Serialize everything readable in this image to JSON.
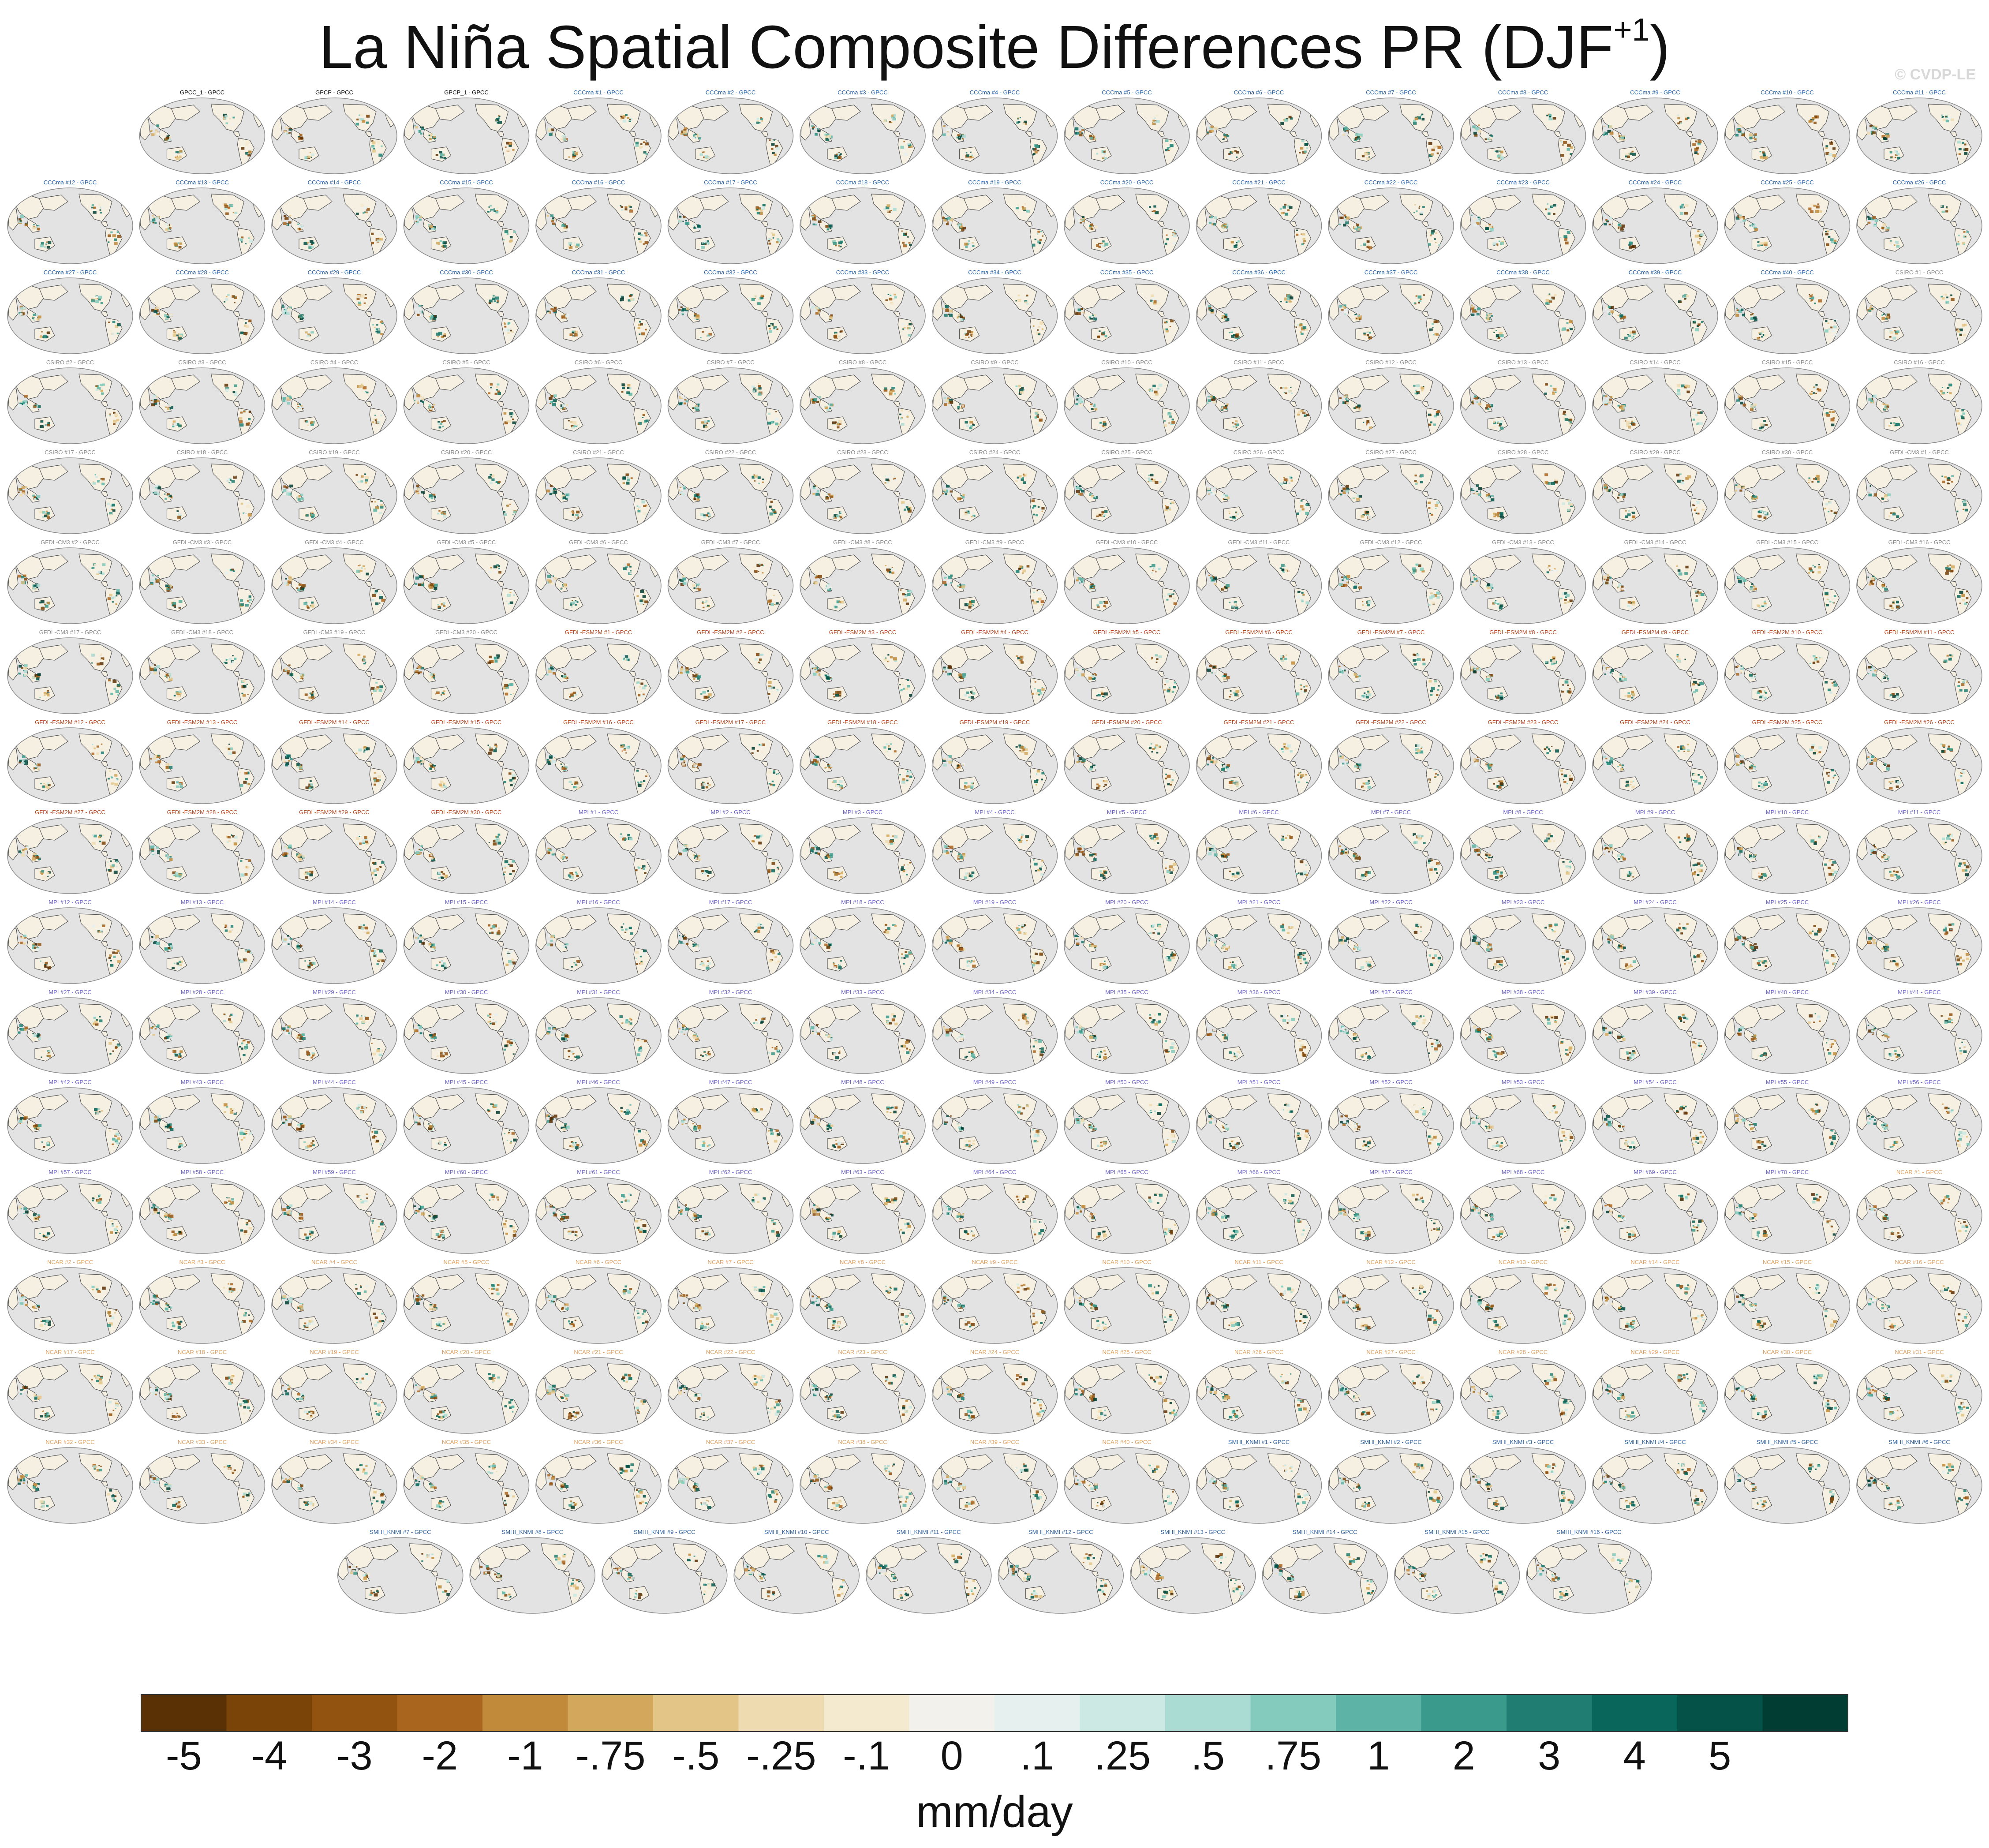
{
  "title": {
    "main": "La Niña Spatial Composite Differences PR (DJF",
    "superscript": "+1",
    "close": ")"
  },
  "copyright": "© CVDP-LE",
  "chart_data": {
    "type": "heatmap",
    "description_kind": "grid of global precipitation composite-difference maps (Robinson projection)",
    "panel_labels": [
      "GPCC_1 - GPCC",
      "GPCP - GPCC",
      "GPCP_1 - GPCC",
      "CCCma #1 - GPCC",
      "CCCma #2 - GPCC",
      "CCCma #3 - GPCC",
      "CCCma #4 - GPCC",
      "CCCma #5 - GPCC",
      "CCCma #6 - GPCC",
      "CCCma #7 - GPCC",
      "CCCma #8 - GPCC",
      "CCCma #9 - GPCC",
      "CCCma #10 - GPCC",
      "CCCma #11 - GPCC",
      "CCCma #12 - GPCC",
      "CCCma #13 - GPCC",
      "CCCma #14 - GPCC",
      "CCCma #15 - GPCC",
      "CCCma #16 - GPCC",
      "CCCma #17 - GPCC",
      "CCCma #18 - GPCC",
      "CCCma #19 - GPCC",
      "CCCma #20 - GPCC",
      "CCCma #21 - GPCC",
      "CCCma #22 - GPCC",
      "CCCma #23 - GPCC",
      "CCCma #24 - GPCC",
      "CCCma #25 - GPCC",
      "CCCma #26 - GPCC",
      "CCCma #27 - GPCC",
      "CCCma #28 - GPCC",
      "CCCma #29 - GPCC",
      "CCCma #30 - GPCC",
      "CCCma #31 - GPCC",
      "CCCma #32 - GPCC",
      "CCCma #33 - GPCC",
      "CCCma #34 - GPCC",
      "CCCma #35 - GPCC",
      "CCCma #36 - GPCC",
      "CCCma #37 - GPCC",
      "CCCma #38 - GPCC",
      "CCCma #39 - GPCC",
      "CCCma #40 - GPCC",
      "CSIRO #1 - GPCC",
      "CSIRO #2 - GPCC",
      "CSIRO #3 - GPCC",
      "CSIRO #4 - GPCC",
      "CSIRO #5 - GPCC",
      "CSIRO #6 - GPCC",
      "CSIRO #7 - GPCC",
      "CSIRO #8 - GPCC",
      "CSIRO #9 - GPCC",
      "CSIRO #10 - GPCC",
      "CSIRO #11 - GPCC",
      "CSIRO #12 - GPCC",
      "CSIRO #13 - GPCC",
      "CSIRO #14 - GPCC",
      "CSIRO #15 - GPCC",
      "CSIRO #16 - GPCC",
      "CSIRO #17 - GPCC",
      "CSIRO #18 - GPCC",
      "CSIRO #19 - GPCC",
      "CSIRO #20 - GPCC",
      "CSIRO #21 - GPCC",
      "CSIRO #22 - GPCC",
      "CSIRO #23 - GPCC",
      "CSIRO #24 - GPCC",
      "CSIRO #25 - GPCC",
      "CSIRO #26 - GPCC",
      "CSIRO #27 - GPCC",
      "CSIRO #28 - GPCC",
      "CSIRO #29 - GPCC",
      "CSIRO #30 - GPCC",
      "GFDL-CM3 #1 - GPCC",
      "GFDL-CM3 #2 - GPCC",
      "GFDL-CM3 #3 - GPCC",
      "GFDL-CM3 #4 - GPCC",
      "GFDL-CM3 #5 - GPCC",
      "GFDL-CM3 #6 - GPCC",
      "GFDL-CM3 #7 - GPCC",
      "GFDL-CM3 #8 - GPCC",
      "GFDL-CM3 #9 - GPCC",
      "GFDL-CM3 #10 - GPCC",
      "GFDL-CM3 #11 - GPCC",
      "GFDL-CM3 #12 - GPCC",
      "GFDL-CM3 #13 - GPCC",
      "GFDL-CM3 #14 - GPCC",
      "GFDL-CM3 #15 - GPCC",
      "GFDL-CM3 #16 - GPCC",
      "GFDL-CM3 #17 - GPCC",
      "GFDL-CM3 #18 - GPCC",
      "GFDL-CM3 #19 - GPCC",
      "GFDL-CM3 #20 - GPCC",
      "GFDL-ESM2M #1 - GPCC",
      "GFDL-ESM2M #2 - GPCC",
      "GFDL-ESM2M #3 - GPCC",
      "GFDL-ESM2M #4 - GPCC",
      "GFDL-ESM2M #5 - GPCC",
      "GFDL-ESM2M #6 - GPCC",
      "GFDL-ESM2M #7 - GPCC",
      "GFDL-ESM2M #8 - GPCC",
      "GFDL-ESM2M #9 - GPCC",
      "GFDL-ESM2M #10 - GPCC",
      "GFDL-ESM2M #11 - GPCC",
      "GFDL-ESM2M #12 - GPCC",
      "GFDL-ESM2M #13 - GPCC",
      "GFDL-ESM2M #14 - GPCC",
      "GFDL-ESM2M #15 - GPCC",
      "GFDL-ESM2M #16 - GPCC",
      "GFDL-ESM2M #17 - GPCC",
      "GFDL-ESM2M #18 - GPCC",
      "GFDL-ESM2M #19 - GPCC",
      "GFDL-ESM2M #20 - GPCC",
      "GFDL-ESM2M #21 - GPCC",
      "GFDL-ESM2M #22 - GPCC",
      "GFDL-ESM2M #23 - GPCC",
      "GFDL-ESM2M #24 - GPCC",
      "GFDL-ESM2M #25 - GPCC",
      "GFDL-ESM2M #26 - GPCC",
      "GFDL-ESM2M #27 - GPCC",
      "GFDL-ESM2M #28 - GPCC",
      "GFDL-ESM2M #29 - GPCC",
      "GFDL-ESM2M #30 - GPCC",
      "MPI #1 - GPCC",
      "MPI #2 - GPCC",
      "MPI #3 - GPCC",
      "MPI #4 - GPCC",
      "MPI #5 - GPCC",
      "MPI #6 - GPCC",
      "MPI #7 - GPCC",
      "MPI #8 - GPCC",
      "MPI #9 - GPCC",
      "MPI #10 - GPCC",
      "MPI #11 - GPCC",
      "MPI #12 - GPCC",
      "MPI #13 - GPCC",
      "MPI #14 - GPCC",
      "MPI #15 - GPCC",
      "MPI #16 - GPCC",
      "MPI #17 - GPCC",
      "MPI #18 - GPCC",
      "MPI #19 - GPCC",
      "MPI #20 - GPCC",
      "MPI #21 - GPCC",
      "MPI #22 - GPCC",
      "MPI #23 - GPCC",
      "MPI #24 - GPCC",
      "MPI #25 - GPCC",
      "MPI #26 - GPCC",
      "MPI #27 - GPCC",
      "MPI #28 - GPCC",
      "MPI #29 - GPCC",
      "MPI #30 - GPCC",
      "MPI #31 - GPCC",
      "MPI #32 - GPCC",
      "MPI #33 - GPCC",
      "MPI #34 - GPCC",
      "MPI #35 - GPCC",
      "MPI #36 - GPCC",
      "MPI #37 - GPCC",
      "MPI #38 - GPCC",
      "MPI #39 - GPCC",
      "MPI #40 - GPCC",
      "MPI #41 - GPCC",
      "MPI #42 - GPCC",
      "MPI #43 - GPCC",
      "MPI #44 - GPCC",
      "MPI #45 - GPCC",
      "MPI #46 - GPCC",
      "MPI #47 - GPCC",
      "MPI #48 - GPCC",
      "MPI #49 - GPCC",
      "MPI #50 - GPCC",
      "MPI #51 - GPCC",
      "MPI #52 - GPCC",
      "MPI #53 - GPCC",
      "MPI #54 - GPCC",
      "MPI #55 - GPCC",
      "MPI #56 - GPCC",
      "MPI #57 - GPCC",
      "MPI #58 - GPCC",
      "MPI #59 - GPCC",
      "MPI #60 - GPCC",
      "MPI #61 - GPCC",
      "MPI #62 - GPCC",
      "MPI #63 - GPCC",
      "MPI #64 - GPCC",
      "MPI #65 - GPCC",
      "MPI #66 - GPCC",
      "MPI #67 - GPCC",
      "MPI #68 - GPCC",
      "MPI #69 - GPCC",
      "MPI #70 - GPCC",
      "NCAR #1 - GPCC",
      "NCAR #2 - GPCC",
      "NCAR #3 - GPCC",
      "NCAR #4 - GPCC",
      "NCAR #5 - GPCC",
      "NCAR #6 - GPCC",
      "NCAR #7 - GPCC",
      "NCAR #8 - GPCC",
      "NCAR #9 - GPCC",
      "NCAR #10 - GPCC",
      "NCAR #11 - GPCC",
      "NCAR #12 - GPCC",
      "NCAR #13 - GPCC",
      "NCAR #14 - GPCC",
      "NCAR #15 - GPCC",
      "NCAR #16 - GPCC",
      "NCAR #17 - GPCC",
      "NCAR #18 - GPCC",
      "NCAR #19 - GPCC",
      "NCAR #20 - GPCC",
      "NCAR #21 - GPCC",
      "NCAR #22 - GPCC",
      "NCAR #23 - GPCC",
      "NCAR #24 - GPCC",
      "NCAR #25 - GPCC",
      "NCAR #26 - GPCC",
      "NCAR #27 - GPCC",
      "NCAR #28 - GPCC",
      "NCAR #29 - GPCC",
      "NCAR #30 - GPCC",
      "NCAR #31 - GPCC",
      "NCAR #32 - GPCC",
      "NCAR #33 - GPCC",
      "NCAR #34 - GPCC",
      "NCAR #35 - GPCC",
      "NCAR #36 - GPCC",
      "NCAR #37 - GPCC",
      "NCAR #38 - GPCC",
      "NCAR #39 - GPCC",
      "NCAR #40 - GPCC",
      "SMHI_KNMI #1 - GPCC",
      "SMHI_KNMI #2 - GPCC",
      "SMHI_KNMI #3 - GPCC",
      "SMHI_KNMI #4 - GPCC",
      "SMHI_KNMI #5 - GPCC",
      "SMHI_KNMI #6 - GPCC",
      "SMHI_KNMI #7 - GPCC",
      "SMHI_KNMI #8 - GPCC",
      "SMHI_KNMI #9 - GPCC",
      "SMHI_KNMI #10 - GPCC",
      "SMHI_KNMI #11 - GPCC",
      "SMHI_KNMI #12 - GPCC",
      "SMHI_KNMI #13 - GPCC",
      "SMHI_KNMI #14 - GPCC",
      "SMHI_KNMI #15 - GPCC",
      "SMHI_KNMI #16 - GPCC"
    ],
    "label_colors": {
      "GPCC": "#000000",
      "GPCP": "#000000",
      "CCCma": "#1f5fa8",
      "CSIRO": "#8a8a8a",
      "GFDL-CM3": "#8a8a8a",
      "GFDL-ESM2M": "#b5431c",
      "MPI": "#6b63c9",
      "NCAR": "#e0a060",
      "SMHI_KNMI": "#2a5fa0"
    },
    "colorbar": {
      "label": "mm/day",
      "tick_labels": [
        "-5",
        "-4",
        "-3",
        "-2",
        "-1",
        "-.75",
        "-.5",
        "-.25",
        "-.1",
        "0",
        ".1",
        ".25",
        ".5",
        ".75",
        "1",
        "2",
        "3",
        "4",
        "5"
      ],
      "colors": [
        "#5a3005",
        "#7a4308",
        "#925210",
        "#a9651e",
        "#c08a3a",
        "#d3a85c",
        "#e3c587",
        "#eedcb0",
        "#f4ead0",
        "#f3f1ec",
        "#e6f0ee",
        "#cde9e4",
        "#abdcd3",
        "#84cbbd",
        "#5db4a6",
        "#3a9a8b",
        "#1f7e71",
        "#08665a",
        "#045248",
        "#013d33"
      ]
    },
    "map_style": {
      "ocean": "#e3e3e3",
      "land": "#f5f0e2",
      "coast": "#555555"
    }
  }
}
